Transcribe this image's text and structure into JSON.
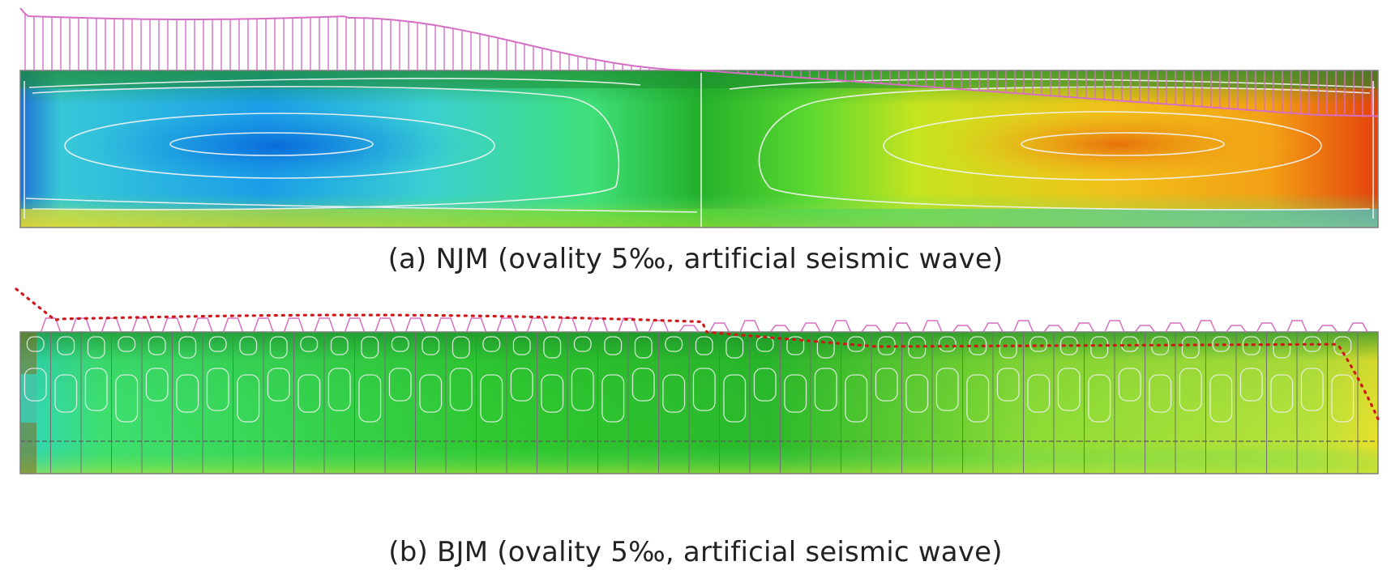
{
  "figure": {
    "panels": [
      {
        "id": "a",
        "caption": "(a) NJM (ovality 5‰, artificial seismic wave)",
        "field": "smooth-contour",
        "colors": [
          "#0a5fd4",
          "#1a9ee8",
          "#38d9c8",
          "#2fe36a",
          "#2dbd2d",
          "#9be02a",
          "#f3e21a",
          "#f39a12",
          "#e0410c"
        ]
      },
      {
        "id": "b",
        "caption": "(b) BJM (ovality 5‰, artificial seismic wave)",
        "field": "segmented-contour",
        "colors": [
          "#35d5b8",
          "#3ee070",
          "#2fc82f",
          "#1f9e2a",
          "#a6e035",
          "#f1e22a",
          "#8a6a1c"
        ]
      }
    ],
    "overlay_colors": {
      "envelope": "#d66fc4",
      "dotted_envelope": "#d01818",
      "contour_lines": "#f4f4f4",
      "joint_lines": "#7a7a7a"
    }
  }
}
